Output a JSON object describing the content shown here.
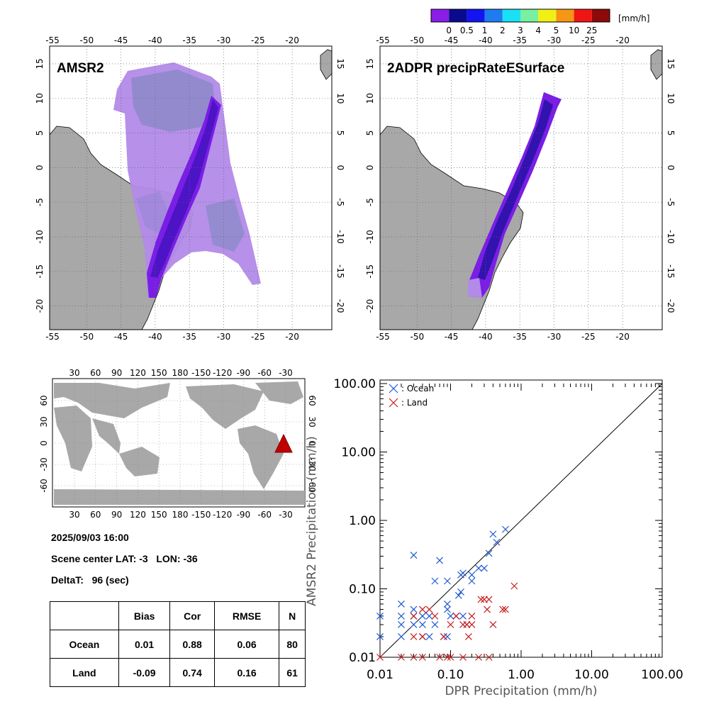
{
  "colorbar": {
    "unit": "[mm/h]",
    "labels": [
      "0",
      "0.5",
      "1",
      "2",
      "3",
      "4",
      "5",
      "10",
      "25"
    ],
    "colors": [
      "#8a1ee6",
      "#0a0a8c",
      "#1414f0",
      "#1e7cf0",
      "#19e1f5",
      "#78f0a0",
      "#f0f014",
      "#f59614",
      "#f01414",
      "#8c0a0a"
    ]
  },
  "maps": {
    "lon_ticks": [
      "-55",
      "-50",
      "-45",
      "-40",
      "-35",
      "-30",
      "-25",
      "-20"
    ],
    "lat_ticks": [
      "15",
      "10",
      "5",
      "0",
      "-5",
      "-10",
      "-15",
      "-20"
    ],
    "left_title": "AMSR2",
    "right_title": "2ADPR precipRateESurface"
  },
  "world": {
    "lon_ticks": [
      "30",
      "60",
      "90",
      "120",
      "150",
      "180",
      "-150",
      "-120",
      "-90",
      "-60",
      "-30"
    ],
    "lat_ticks": [
      "60",
      "30",
      "0",
      "-30",
      "-60"
    ]
  },
  "info": {
    "datetime": "2025/09/03 16:00",
    "scene": "Scene center LAT: -3   LON: -36",
    "deltat": "DeltaT:   96 (sec)"
  },
  "stats": {
    "headers": [
      "",
      "Bias",
      "Cor",
      "RMSE",
      "N"
    ],
    "rows": [
      [
        "Ocean",
        "0.01",
        "0.88",
        "0.06",
        "80"
      ],
      [
        "Land",
        "-0.09",
        "0.74",
        "0.16",
        "61"
      ]
    ]
  },
  "chart_data": {
    "type": "scatter",
    "xlabel": "DPR Precipitation (mm/h)",
    "ylabel": "AMSR2 Precipitation (mm/h)",
    "xscale": "log",
    "yscale": "log",
    "xlim": [
      0.01,
      100
    ],
    "ylim": [
      0.01,
      100
    ],
    "x_tick_labels": [
      "0.01",
      "0.10",
      "1.00",
      "10.00",
      "100.00"
    ],
    "y_tick_labels": [
      "0.01",
      "0.10",
      "1.00",
      "10.00",
      "100.00"
    ],
    "legend_position": "top-left",
    "series": [
      {
        "name": ": Ocean",
        "color": "#1e5ad2",
        "points": [
          [
            0.01,
            0.02
          ],
          [
            0.01,
            0.04
          ],
          [
            0.02,
            0.02
          ],
          [
            0.02,
            0.03
          ],
          [
            0.02,
            0.04
          ],
          [
            0.02,
            0.06
          ],
          [
            0.03,
            0.03
          ],
          [
            0.03,
            0.04
          ],
          [
            0.03,
            0.05
          ],
          [
            0.03,
            0.31
          ],
          [
            0.04,
            0.02
          ],
          [
            0.04,
            0.03
          ],
          [
            0.04,
            0.04
          ],
          [
            0.05,
            0.02
          ],
          [
            0.05,
            0.04
          ],
          [
            0.06,
            0.03
          ],
          [
            0.06,
            0.13
          ],
          [
            0.07,
            0.26
          ],
          [
            0.08,
            0.02
          ],
          [
            0.09,
            0.02
          ],
          [
            0.09,
            0.05
          ],
          [
            0.09,
            0.06
          ],
          [
            0.09,
            0.13
          ],
          [
            0.1,
            0.04
          ],
          [
            0.12,
            0.04
          ],
          [
            0.13,
            0.08
          ],
          [
            0.14,
            0.09
          ],
          [
            0.14,
            0.16
          ],
          [
            0.15,
            0.04
          ],
          [
            0.15,
            0.17
          ],
          [
            0.17,
            0.03
          ],
          [
            0.2,
            0.13
          ],
          [
            0.2,
            0.16
          ],
          [
            0.25,
            0.2
          ],
          [
            0.3,
            0.2
          ],
          [
            0.35,
            0.33
          ],
          [
            0.4,
            0.63
          ],
          [
            0.45,
            0.48
          ],
          [
            0.6,
            0.74
          ]
        ]
      },
      {
        "name": ": Land",
        "color": "#c81e1e",
        "points": [
          [
            0.01,
            0.01
          ],
          [
            0.02,
            0.01
          ],
          [
            0.03,
            0.01
          ],
          [
            0.03,
            0.02
          ],
          [
            0.03,
            0.04
          ],
          [
            0.04,
            0.01
          ],
          [
            0.04,
            0.02
          ],
          [
            0.04,
            0.05
          ],
          [
            0.05,
            0.05
          ],
          [
            0.06,
            0.04
          ],
          [
            0.07,
            0.01
          ],
          [
            0.08,
            0.02
          ],
          [
            0.09,
            0.01
          ],
          [
            0.1,
            0.01
          ],
          [
            0.1,
            0.03
          ],
          [
            0.12,
            0.04
          ],
          [
            0.15,
            0.01
          ],
          [
            0.15,
            0.03
          ],
          [
            0.17,
            0.03
          ],
          [
            0.18,
            0.02
          ],
          [
            0.2,
            0.04
          ],
          [
            0.2,
            0.03
          ],
          [
            0.25,
            0.01
          ],
          [
            0.27,
            0.07
          ],
          [
            0.3,
            0.07
          ],
          [
            0.33,
            0.05
          ],
          [
            0.35,
            0.01
          ],
          [
            0.35,
            0.07
          ],
          [
            0.4,
            0.03
          ],
          [
            0.55,
            0.05
          ],
          [
            0.6,
            0.05
          ],
          [
            0.8,
            0.11
          ]
        ]
      }
    ],
    "reference_line": "1:1"
  }
}
